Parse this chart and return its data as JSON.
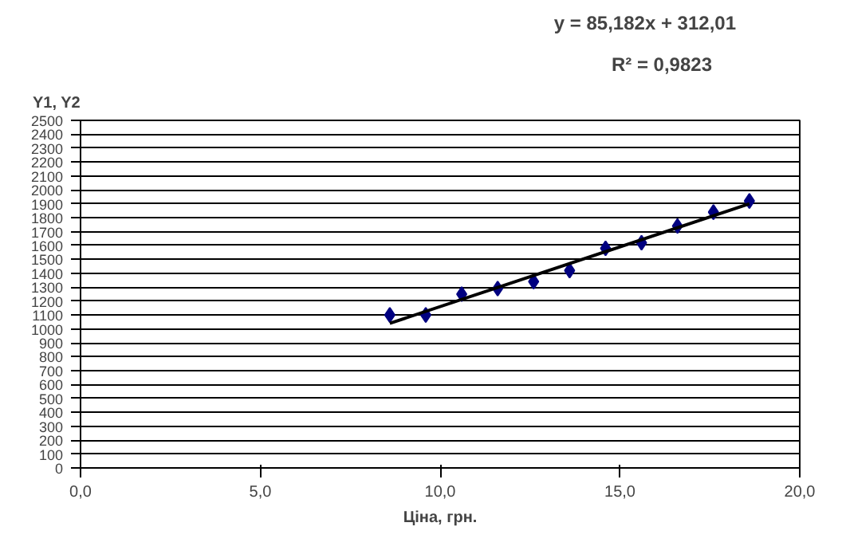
{
  "chart_data": {
    "type": "scatter",
    "ylabel": "Y1, Y2",
    "xlabel": "Ціна, грн.",
    "annotations": [
      "y = 85,182x + 312,01",
      "R² = 0,9823"
    ],
    "grid": "y",
    "xlim": [
      0,
      20
    ],
    "xticks": [
      {
        "value": 0,
        "label": "0,0"
      },
      {
        "value": 5,
        "label": "5,0"
      },
      {
        "value": 10,
        "label": "10,0"
      },
      {
        "value": 15,
        "label": "15,0"
      },
      {
        "value": 20,
        "label": "20,0"
      }
    ],
    "ylim": [
      0,
      2500
    ],
    "yticks": [
      0,
      100,
      200,
      300,
      400,
      500,
      600,
      700,
      800,
      900,
      1000,
      1100,
      1200,
      1300,
      1400,
      1500,
      1600,
      1700,
      1800,
      1900,
      2000,
      2100,
      2200,
      2300,
      2400,
      2500
    ],
    "series": [
      {
        "marker": "diamond",
        "color": "#000080",
        "x": [
          8.6,
          9.6,
          10.6,
          11.6,
          12.6,
          13.6,
          14.6,
          15.6,
          16.6,
          17.6,
          18.6
        ],
        "values": [
          1100,
          1100,
          1250,
          1290,
          1340,
          1420,
          1580,
          1620,
          1740,
          1840,
          1920
        ]
      },
      {
        "type": "line",
        "marker": "none",
        "color": "#000000",
        "x": [
          8.6,
          18.6
        ],
        "values": [
          1040,
          1900
        ]
      }
    ]
  }
}
